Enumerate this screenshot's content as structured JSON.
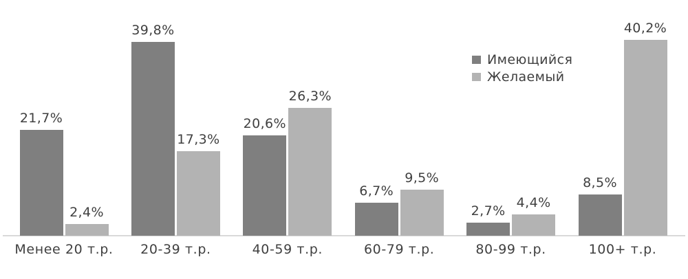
{
  "chart_data": {
    "type": "bar",
    "title": "",
    "xlabel": "",
    "ylabel": "",
    "categories": [
      "Менее 20 т.р.",
      "20-39 т.р.",
      "40-59 т.р.",
      "60-79 т.р.",
      "80-99 т.р.",
      "100+ т.р."
    ],
    "series": [
      {
        "name": "Имеющийся",
        "color": "#7f7f7f",
        "values": [
          21.7,
          39.8,
          20.6,
          6.7,
          2.7,
          8.5
        ],
        "labels": [
          "21,7%",
          "39,8%",
          "20,6%",
          "6,7%",
          "2,7%",
          "8,5%"
        ]
      },
      {
        "name": "Желаемый",
        "color": "#b3b3b3",
        "values": [
          2.4,
          17.3,
          26.3,
          9.5,
          4.4,
          40.2
        ],
        "labels": [
          "2,4%",
          "17,3%",
          "26,3%",
          "9,5%",
          "4,4%",
          "40,2%"
        ]
      }
    ],
    "ylim": [
      0,
      42
    ],
    "grid": false,
    "data_labels": true,
    "legend_position": "upper-right",
    "axis_line_color": "#d9d9d9",
    "label_color": "#404040",
    "background_color": "#ffffff"
  }
}
